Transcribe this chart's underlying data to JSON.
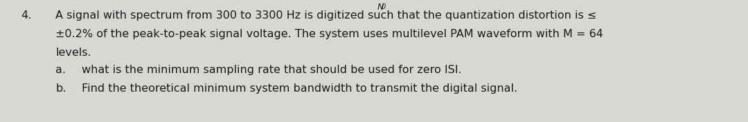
{
  "background_color": "#d9d7d2",
  "text_color": "#1a1a1a",
  "number": "4.",
  "line1": "A signal with spectrum from 300 to 3300 Hz is digitized such that the quantization distortion is ≤",
  "line2": "±0.2% of the peak-to-peak signal voltage. The system uses multilevel PAM waveform with M = 64",
  "line3": "levels.",
  "label_a": "a.",
  "line_a": "what is the minimum sampling rate that should be used for zero ISI.",
  "label_b": "b.",
  "line_b": "Find the theoretical minimum system bandwidth to transmit the digital signal.",
  "top_label": "N",
  "top_label_sub": "0",
  "font_size_main": 11.5,
  "font_size_sub": 11.5,
  "font_size_top": 9.0
}
